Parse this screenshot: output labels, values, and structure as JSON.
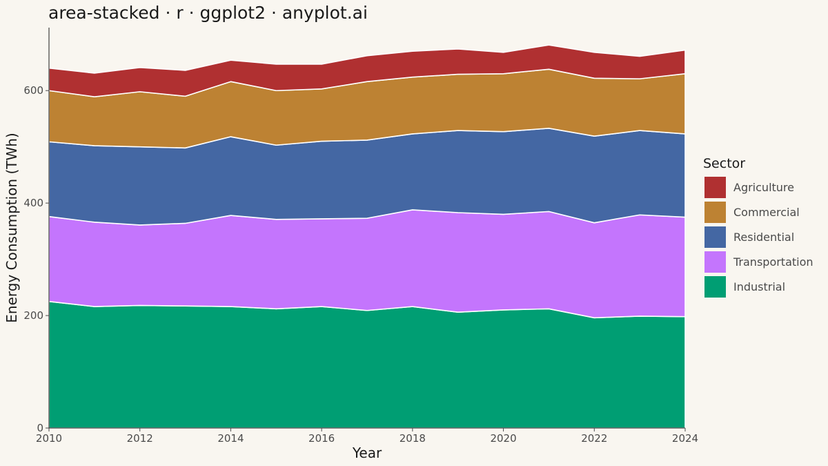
{
  "chart_data": {
    "type": "area",
    "stacked": true,
    "title": "area-stacked · r · ggplot2 · anyplot.ai",
    "xlabel": "Year",
    "ylabel": "Energy Consumption (TWh)",
    "x": [
      2010,
      2011,
      2012,
      2013,
      2014,
      2015,
      2016,
      2017,
      2018,
      2019,
      2020,
      2021,
      2022,
      2023,
      2024
    ],
    "xlim": [
      2010,
      2024
    ],
    "ylim": [
      0,
      712
    ],
    "xticks": [
      2010,
      2012,
      2014,
      2016,
      2018,
      2020,
      2022,
      2024
    ],
    "yticks": [
      0,
      200,
      400,
      600
    ],
    "grid": false,
    "legend": {
      "title": "Sector",
      "position": "right"
    },
    "series": [
      {
        "name": "Industrial",
        "color": "#009E73",
        "values": [
          225,
          216,
          218,
          217,
          216,
          212,
          216,
          209,
          216,
          206,
          210,
          212,
          196,
          199,
          198
        ]
      },
      {
        "name": "Transportation",
        "color": "#C475FD",
        "values": [
          151,
          150,
          143,
          147,
          162,
          159,
          156,
          164,
          172,
          177,
          170,
          173,
          169,
          180,
          177
        ]
      },
      {
        "name": "Residential",
        "color": "#4467A3",
        "values": [
          133,
          136,
          139,
          134,
          140,
          132,
          138,
          139,
          135,
          146,
          147,
          148,
          154,
          150,
          148
        ]
      },
      {
        "name": "Commercial",
        "color": "#BD8233",
        "values": [
          91,
          87,
          98,
          92,
          98,
          97,
          93,
          104,
          101,
          100,
          103,
          105,
          103,
          92,
          107
        ]
      },
      {
        "name": "Agriculture",
        "color": "#B03031",
        "values": [
          40,
          42,
          43,
          46,
          38,
          47,
          44,
          46,
          46,
          45,
          38,
          43,
          46,
          40,
          42
        ]
      }
    ]
  }
}
